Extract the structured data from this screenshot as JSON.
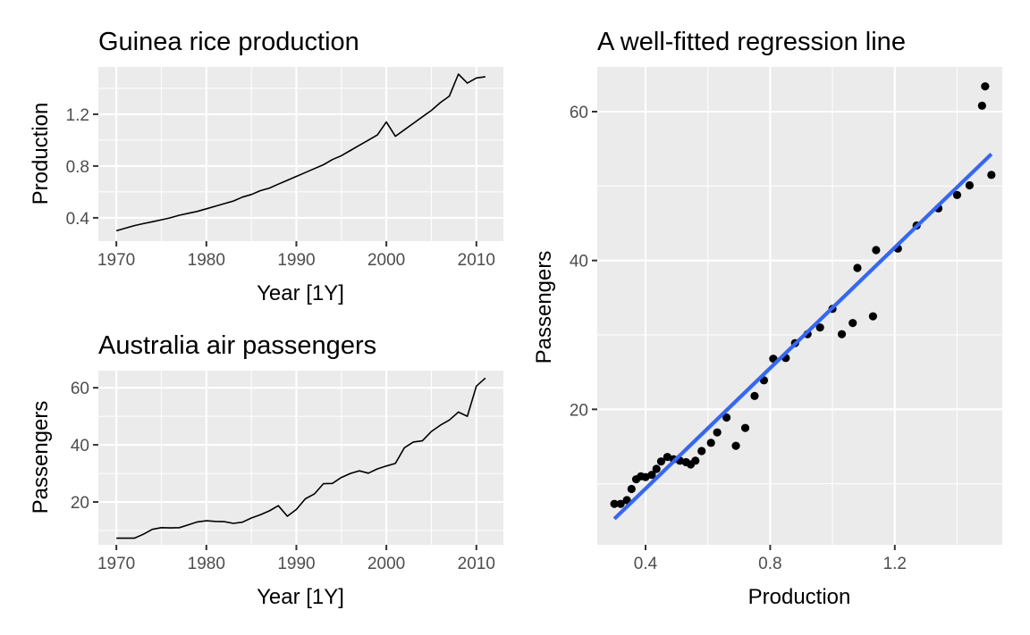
{
  "chart_data": [
    {
      "type": "line",
      "title": "Guinea rice production",
      "xlabel": "Year [1Y]",
      "ylabel": "Production",
      "xlim": [
        1968,
        2013
      ],
      "ylim": [
        0.22,
        1.565
      ],
      "x_ticks": [
        1970,
        1980,
        1990,
        2000,
        2010
      ],
      "x_tick_labels": [
        "1970",
        "1980",
        "1990",
        "2000",
        "2010"
      ],
      "y_ticks": [
        0.4,
        0.8,
        1.2
      ],
      "y_tick_labels": [
        "0.4",
        "0.8",
        "1.2"
      ],
      "grid": true,
      "series": [
        {
          "x": [
            1970,
            1971,
            1972,
            1973,
            1974,
            1975,
            1976,
            1977,
            1978,
            1979,
            1980,
            1981,
            1982,
            1983,
            1984,
            1985,
            1986,
            1987,
            1988,
            1989,
            1990,
            1991,
            1992,
            1993,
            1994,
            1995,
            1996,
            1997,
            1998,
            1999,
            2000,
            2001,
            2002,
            2003,
            2004,
            2005,
            2006,
            2007,
            2008,
            2009,
            2010,
            2011
          ],
          "values": [
            0.3,
            0.32,
            0.34,
            0.355,
            0.37,
            0.385,
            0.4,
            0.42,
            0.435,
            0.45,
            0.47,
            0.49,
            0.51,
            0.53,
            0.56,
            0.58,
            0.61,
            0.63,
            0.66,
            0.69,
            0.72,
            0.75,
            0.78,
            0.81,
            0.85,
            0.88,
            0.92,
            0.96,
            1.0,
            1.04,
            1.14,
            1.03,
            1.08,
            1.13,
            1.18,
            1.23,
            1.29,
            1.34,
            1.51,
            1.44,
            1.48,
            1.49
          ]
        }
      ]
    },
    {
      "type": "line",
      "title": "Australia air passengers",
      "xlabel": "Year [1Y]",
      "ylabel": "Passengers",
      "xlim": [
        1968,
        2013
      ],
      "ylim": [
        5,
        66
      ],
      "x_ticks": [
        1970,
        1980,
        1990,
        2000,
        2010
      ],
      "x_tick_labels": [
        "1970",
        "1980",
        "1990",
        "2000",
        "2010"
      ],
      "y_ticks": [
        20,
        40,
        60
      ],
      "y_tick_labels": [
        "20",
        "40",
        "60"
      ],
      "grid": true,
      "series": [
        {
          "x": [
            1970,
            1971,
            1972,
            1973,
            1974,
            1975,
            1976,
            1977,
            1978,
            1979,
            1980,
            1981,
            1982,
            1983,
            1984,
            1985,
            1986,
            1987,
            1988,
            1989,
            1990,
            1991,
            1992,
            1993,
            1994,
            1995,
            1996,
            1997,
            1998,
            1999,
            2000,
            2001,
            2002,
            2003,
            2004,
            2005,
            2006,
            2007,
            2008,
            2009,
            2010,
            2011
          ],
          "values": [
            7.3,
            7.3,
            7.3,
            8.7,
            10.4,
            11.0,
            10.9,
            11.0,
            12.0,
            13.0,
            13.4,
            13.2,
            13.1,
            12.5,
            12.9,
            14.4,
            15.5,
            16.9,
            18.7,
            15.0,
            17.4,
            21.1,
            22.8,
            26.4,
            26.5,
            28.6,
            30.0,
            30.9,
            30.1,
            31.6,
            32.6,
            33.5,
            39.0,
            41.0,
            41.4,
            44.7,
            46.9,
            48.7,
            51.5,
            50.0,
            60.6,
            63.4
          ]
        }
      ]
    },
    {
      "type": "scatter",
      "title": "A well-fitted regression line",
      "xlabel": "Production",
      "ylabel": "Passengers",
      "xlim": [
        0.245,
        1.545
      ],
      "ylim": [
        1.8,
        66
      ],
      "x_ticks": [
        0.4,
        0.8,
        1.2
      ],
      "x_tick_labels": [
        "0.4",
        "0.8",
        "1.2"
      ],
      "y_ticks": [
        20,
        40,
        60
      ],
      "y_tick_labels": [
        "20",
        "40",
        "60"
      ],
      "grid": true,
      "points": [
        [
          0.3,
          7.3
        ],
        [
          0.32,
          7.3
        ],
        [
          0.34,
          7.8
        ],
        [
          0.355,
          9.3
        ],
        [
          0.37,
          10.6
        ],
        [
          0.385,
          11.0
        ],
        [
          0.4,
          10.9
        ],
        [
          0.42,
          11.2
        ],
        [
          0.435,
          12.0
        ],
        [
          0.45,
          13.0
        ],
        [
          0.47,
          13.6
        ],
        [
          0.49,
          13.3
        ],
        [
          0.51,
          13.1
        ],
        [
          0.53,
          12.9
        ],
        [
          0.545,
          12.6
        ],
        [
          0.56,
          13.1
        ],
        [
          0.58,
          14.4
        ],
        [
          0.61,
          15.5
        ],
        [
          0.63,
          16.9
        ],
        [
          0.66,
          18.9
        ],
        [
          0.69,
          15.1
        ],
        [
          0.72,
          17.5
        ],
        [
          0.75,
          21.8
        ],
        [
          0.78,
          23.9
        ],
        [
          0.81,
          26.8
        ],
        [
          0.85,
          26.9
        ],
        [
          0.88,
          28.9
        ],
        [
          0.92,
          30.1
        ],
        [
          0.96,
          31.0
        ],
        [
          1.0,
          33.5
        ],
        [
          1.03,
          30.1
        ],
        [
          1.065,
          31.6
        ],
        [
          1.08,
          39.0
        ],
        [
          1.13,
          32.5
        ],
        [
          1.14,
          41.4
        ],
        [
          1.21,
          41.6
        ],
        [
          1.27,
          44.7
        ],
        [
          1.34,
          47.0
        ],
        [
          1.4,
          48.8
        ],
        [
          1.44,
          50.1
        ],
        [
          1.48,
          60.8
        ],
        [
          1.49,
          63.4
        ],
        [
          1.51,
          51.5
        ]
      ],
      "fit_line": {
        "x": [
          0.3,
          1.51
        ],
        "values": [
          5.3,
          54.3
        ],
        "color": "#3366ff"
      }
    }
  ]
}
